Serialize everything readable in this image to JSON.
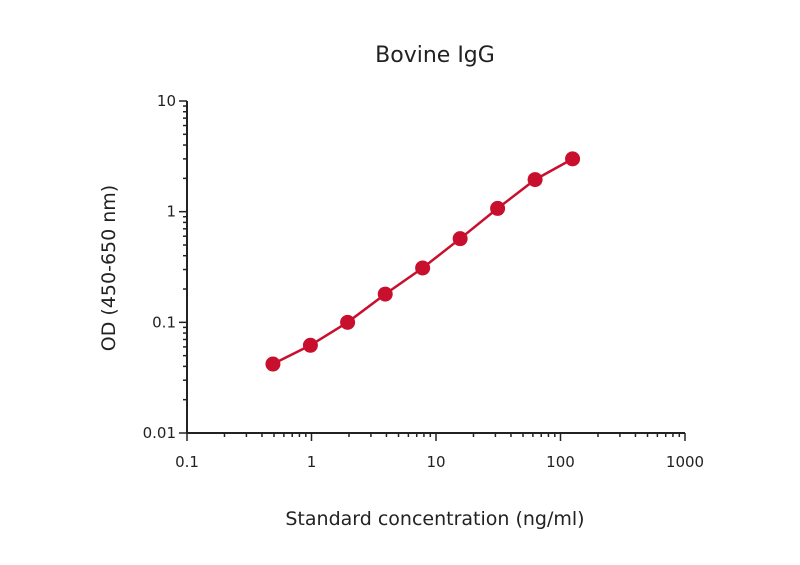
{
  "chart_data": {
    "type": "line",
    "title": "Bovine IgG",
    "xlabel": "Standard concentration (ng/ml)",
    "ylabel": "OD (450-650 nm)",
    "x_scale": "log",
    "y_scale": "log",
    "xlim": [
      0.1,
      1000
    ],
    "ylim": [
      0.01,
      10
    ],
    "x_ticks": [
      0.1,
      1,
      10,
      100,
      1000
    ],
    "x_tick_labels": [
      "0.1",
      "1",
      "10",
      "100",
      "1000"
    ],
    "y_ticks": [
      0.01,
      0.1,
      1,
      10
    ],
    "y_tick_labels": [
      "0.01",
      "0.1",
      "1",
      "10"
    ],
    "grid": false,
    "series": [
      {
        "color": "#c8102e",
        "x": [
          0.49,
          0.98,
          1.95,
          3.91,
          7.81,
          15.63,
          31.25,
          62.5,
          125
        ],
        "y": [
          0.042,
          0.062,
          0.1,
          0.18,
          0.31,
          0.57,
          1.07,
          1.95,
          3.0
        ]
      }
    ]
  }
}
